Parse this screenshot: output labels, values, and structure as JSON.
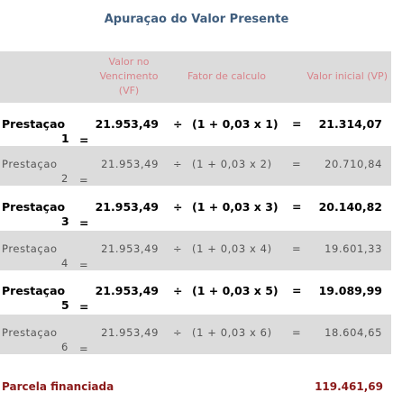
{
  "title": "Apuraçao do Valor Presente",
  "table": {
    "header": {
      "vf": [
        "Valor no",
        "Vencimento",
        "(VF)"
      ],
      "factor": "Fator de calculo",
      "vp": "Valor inicial (VP)"
    },
    "rows": [
      {
        "label": "Prestaçao",
        "number": "1",
        "eq": "=",
        "vf": "21.953,49",
        "div": "÷",
        "factor": "(1 + 0,03 x 1)",
        "eq2": "=",
        "vp": "21.314,07"
      },
      {
        "label": "Prestaçao",
        "number": "2",
        "eq": "=",
        "vf": "21.953,49",
        "div": "÷",
        "factor": "(1 + 0,03 x 2)",
        "eq2": "=",
        "vp": "20.710,84"
      },
      {
        "label": "Prestaçao",
        "number": "3",
        "eq": "=",
        "vf": "21.953,49",
        "div": "÷",
        "factor": "(1 + 0,03 x 3)",
        "eq2": "=",
        "vp": "20.140,82"
      },
      {
        "label": "Prestaçao",
        "number": "4",
        "eq": "=",
        "vf": "21.953,49",
        "div": "÷",
        "factor": "(1 + 0,03 x 4)",
        "eq2": "=",
        "vp": "19.601,33"
      },
      {
        "label": "Prestaçao",
        "number": "5",
        "eq": "=",
        "vf": "21.953,49",
        "div": "÷",
        "factor": "(1 + 0,03 x 5)",
        "eq2": "=",
        "vp": "19.089,99"
      },
      {
        "label": "Prestaçao",
        "number": "6",
        "eq": "=",
        "vf": "21.953,49",
        "div": "÷",
        "factor": "(1 + 0,03 x 6)",
        "eq2": "=",
        "vp": "18.604,65"
      }
    ]
  },
  "footer": {
    "label": "Parcela financiada",
    "value": "119.461,69"
  }
}
